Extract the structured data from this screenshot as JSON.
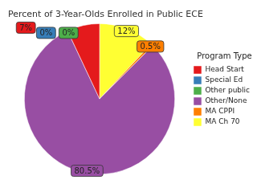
{
  "chart_data": {
    "type": "pie",
    "title": "Percent of 3-Year-Olds Enrolled in Public ECE",
    "legend_title": "Program Type",
    "categories": [
      "Head Start",
      "Special Ed",
      "Other public",
      "Other/None",
      "MA CPPI",
      "MA Ch 70"
    ],
    "values": [
      7,
      0,
      0,
      80.5,
      0.5,
      12
    ],
    "value_labels": [
      "7%",
      "0%",
      "0%",
      "80.5%",
      "0.5%",
      "12%"
    ],
    "colors": [
      "#e41a1c",
      "#377eb8",
      "#4daf4a",
      "#984ea3",
      "#ff7f00",
      "#ffff33"
    ],
    "legend": "right",
    "data_labels": true
  }
}
